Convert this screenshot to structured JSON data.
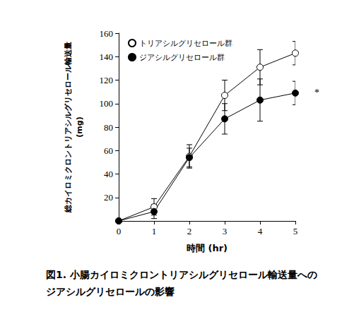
{
  "chart_data": {
    "type": "line",
    "title": "図1. 小腸カイロミクロントリアシルグリセロール輸送量への\nジアシルグリセロールの影響",
    "x_label": "時間 (hr)",
    "y_label": "総カイロミクロントリアシルグリセロール輸送量\n(mg)",
    "x": [
      0,
      1,
      2,
      3,
      4,
      5
    ],
    "series": [
      {
        "name": "トリアシルグリセロール群",
        "color": "#000000",
        "marker": "circle_open",
        "values": [
          0,
          12,
          55,
          107,
          131,
          143
        ],
        "errors": [
          0,
          7,
          10,
          13,
          15,
          10
        ]
      },
      {
        "name": "ジアシルグリセロール群",
        "color": "#000000",
        "marker": "circle",
        "values": [
          0,
          8,
          54,
          87,
          103,
          109
        ],
        "errors": [
          0,
          6,
          8,
          13,
          18,
          10
        ]
      }
    ],
    "annotations": [
      {
        "text": "*",
        "series": "ジアシルグリセロール群"
      }
    ],
    "xlim": [
      0,
      5
    ],
    "xticks": [
      0,
      1,
      2,
      3,
      4,
      5
    ],
    "ylim": [
      0,
      160
    ],
    "yticks": [
      20,
      40,
      60,
      80,
      100,
      120,
      140,
      160
    ],
    "grid": false,
    "legend": "top left"
  }
}
